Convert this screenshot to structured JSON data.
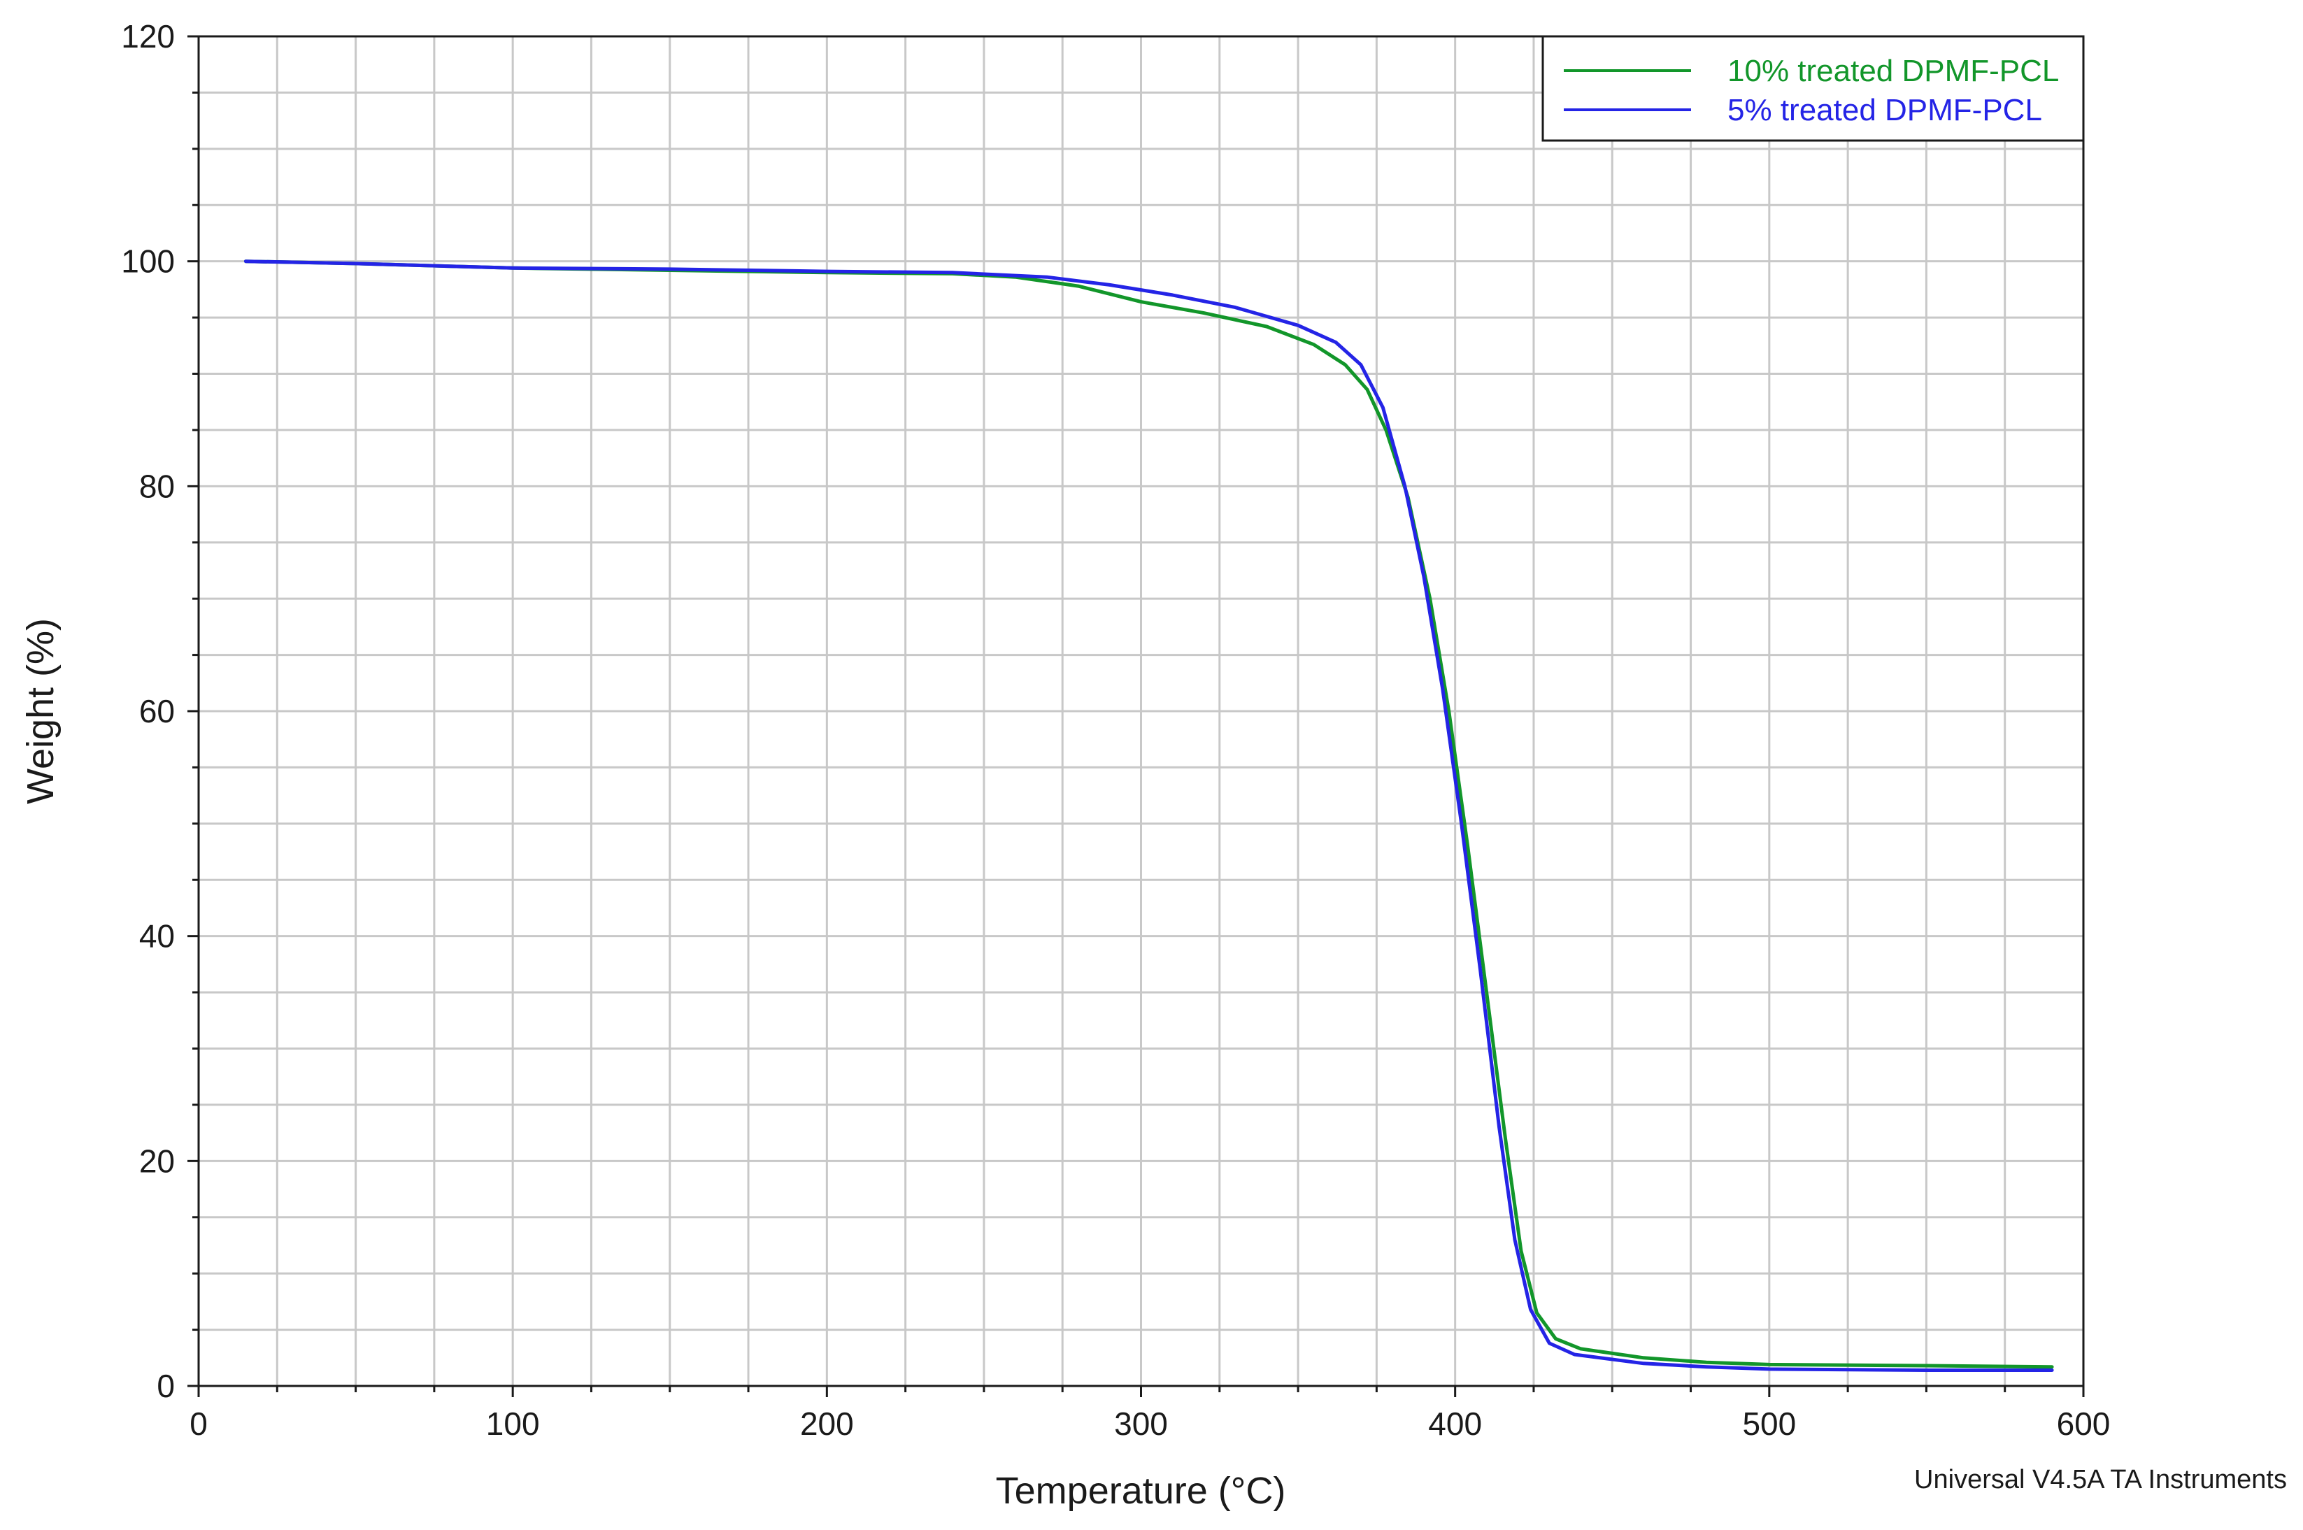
{
  "chart_data": {
    "type": "line",
    "xlabel": "Temperature (°C)",
    "ylabel": "Weight (%)",
    "xlim": [
      0,
      600
    ],
    "ylim": [
      0,
      120
    ],
    "xticks": [
      0,
      100,
      200,
      300,
      400,
      500,
      600
    ],
    "yticks": [
      0,
      20,
      40,
      60,
      80,
      100,
      120
    ],
    "x_minor_step": 25,
    "y_minor_step": 5,
    "grid": true,
    "legend_position": "top-right",
    "series": [
      {
        "name": "10% treated DPMF-PCL",
        "color": "#12962a",
        "points": [
          [
            15,
            100.0
          ],
          [
            50,
            99.8
          ],
          [
            100,
            99.4
          ],
          [
            150,
            99.2
          ],
          [
            200,
            99.0
          ],
          [
            240,
            98.9
          ],
          [
            260,
            98.6
          ],
          [
            280,
            97.8
          ],
          [
            300,
            96.4
          ],
          [
            320,
            95.4
          ],
          [
            340,
            94.2
          ],
          [
            355,
            92.6
          ],
          [
            365,
            90.8
          ],
          [
            372,
            88.6
          ],
          [
            378,
            85.0
          ],
          [
            385,
            79.0
          ],
          [
            392,
            70.0
          ],
          [
            398,
            60.0
          ],
          [
            404,
            48.0
          ],
          [
            410,
            35.0
          ],
          [
            416,
            22.0
          ],
          [
            421,
            12.0
          ],
          [
            426,
            6.5
          ],
          [
            432,
            4.2
          ],
          [
            440,
            3.3
          ],
          [
            460,
            2.5
          ],
          [
            480,
            2.1
          ],
          [
            500,
            1.9
          ],
          [
            550,
            1.8
          ],
          [
            590,
            1.7
          ]
        ]
      },
      {
        "name": "5% treated DPMF-PCL",
        "color": "#2424e6",
        "points": [
          [
            15,
            100.0
          ],
          [
            50,
            99.8
          ],
          [
            100,
            99.4
          ],
          [
            150,
            99.3
          ],
          [
            200,
            99.1
          ],
          [
            240,
            99.0
          ],
          [
            270,
            98.6
          ],
          [
            290,
            97.9
          ],
          [
            310,
            97.0
          ],
          [
            330,
            95.9
          ],
          [
            350,
            94.3
          ],
          [
            362,
            92.8
          ],
          [
            370,
            90.8
          ],
          [
            377,
            87.0
          ],
          [
            384,
            80.0
          ],
          [
            390,
            72.0
          ],
          [
            396,
            62.0
          ],
          [
            402,
            50.0
          ],
          [
            408,
            37.0
          ],
          [
            414,
            23.0
          ],
          [
            419,
            13.0
          ],
          [
            424,
            6.8
          ],
          [
            430,
            3.8
          ],
          [
            438,
            2.8
          ],
          [
            460,
            2.0
          ],
          [
            480,
            1.7
          ],
          [
            500,
            1.5
          ],
          [
            550,
            1.4
          ],
          [
            590,
            1.4
          ]
        ]
      }
    ]
  },
  "footer": {
    "software": "Universal V4.5A TA Instruments"
  }
}
